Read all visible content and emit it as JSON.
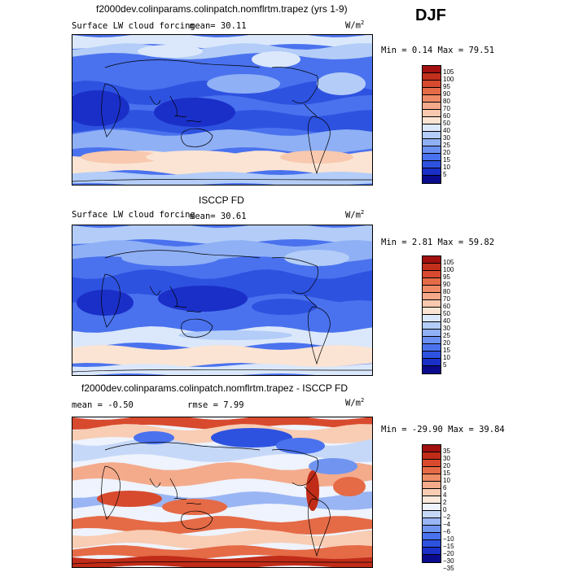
{
  "season": "DJF",
  "colors": {
    "seq": [
      "#0a0a8c",
      "#1a2fc8",
      "#2e52e0",
      "#4a72ee",
      "#6b90f2",
      "#8fb0f5",
      "#b3cdf8",
      "#dbe8fb",
      "#fbe4d3",
      "#f8c9ae",
      "#f4a98a",
      "#ee8a66",
      "#e46a48",
      "#d84a30",
      "#c2301c",
      "#a21010"
    ],
    "diff": [
      "#0a0a8c",
      "#1a2fc8",
      "#2e52e0",
      "#4a72ee",
      "#7094f0",
      "#9ab5f4",
      "#c6d8f8",
      "#eef3fd",
      "#fbe9dc",
      "#f8cdb4",
      "#f4ab8c",
      "#ee8c66",
      "#e56a46",
      "#d84a2e",
      "#c02c18",
      "#a01010"
    ]
  },
  "panels": [
    {
      "title": "f2000dev.colinparams.colinpatch.nomflrtm.trapez (yrs 1-9)",
      "variable": "Surface LW cloud forcing",
      "mean_text": "mean=  30.11",
      "units": "W/m",
      "units_sup": "2",
      "minmax_text": "Min =    0.14 Max =  79.51",
      "chart_data": {
        "type": "heatmap",
        "title": "f2000dev.colinparams.colinpatch.nomflrtm.trapez (yrs 1-9)",
        "variable": "Surface LW cloud forcing",
        "units": "W/m2",
        "mean": 30.11,
        "min": 0.14,
        "max": 79.51,
        "levels": [
          5,
          10,
          15,
          20,
          25,
          30,
          40,
          50,
          60,
          70,
          80,
          90,
          95,
          100,
          105
        ]
      }
    },
    {
      "title": "ISCCP FD",
      "variable": "Surface LW cloud forcing",
      "mean_text": "mean=  30.61",
      "units": "W/m",
      "units_sup": "2",
      "minmax_text": "Min =    2.81 Max =  59.82",
      "chart_data": {
        "type": "heatmap",
        "title": "ISCCP FD",
        "variable": "Surface LW cloud forcing",
        "units": "W/m2",
        "mean": 30.61,
        "min": 2.81,
        "max": 59.82,
        "levels": [
          5,
          10,
          15,
          20,
          25,
          30,
          40,
          50,
          60,
          70,
          80,
          90,
          95,
          100,
          105
        ]
      }
    },
    {
      "title": "f2000dev.colinparams.colinpatch.nomflrtm.trapez - ISCCP FD",
      "variable": "",
      "mean_text": "mean =  -0.50",
      "rmse_text": "rmse =   7.99",
      "units": "W/m",
      "units_sup": "2",
      "minmax_text": "Min = -29.90 Max =  39.84",
      "chart_data": {
        "type": "heatmap",
        "title": "f2000dev.colinparams.colinpatch.nomflrtm.trapez - ISCCP FD",
        "units": "W/m2",
        "mean": -0.5,
        "rmse": 7.99,
        "min": -29.9,
        "max": 39.84,
        "levels": [
          -35,
          -30,
          -20,
          -15,
          -10,
          -6,
          -4,
          -2,
          0,
          2,
          4,
          6,
          10,
          15,
          20,
          30,
          35
        ]
      }
    }
  ],
  "colorbar_labels": {
    "top": [
      "105",
      "100",
      "95",
      "90",
      "80",
      "70",
      "60",
      "50",
      "40",
      "30",
      "25",
      "20",
      "15",
      "10",
      "5"
    ],
    "mid": [
      "105",
      "100",
      "95",
      "90",
      "80",
      "70",
      "60",
      "50",
      "40",
      "30",
      "25",
      "20",
      "15",
      "10",
      "5"
    ],
    "bot": [
      "35",
      "30",
      "20",
      "15",
      "10",
      "6",
      "4",
      "2",
      "0",
      "−2",
      "−4",
      "−6",
      "−10",
      "−15",
      "−20",
      "−30",
      "−35"
    ]
  }
}
